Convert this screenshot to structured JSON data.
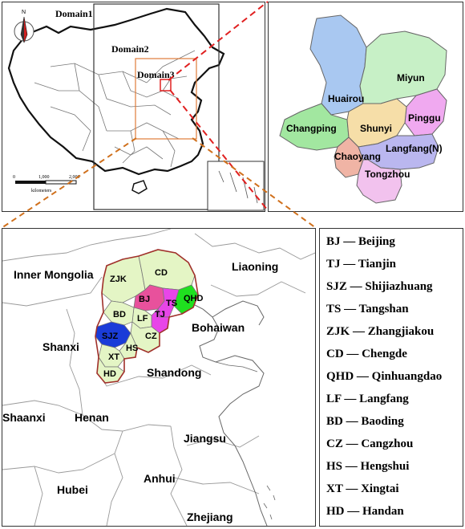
{
  "china_map": {
    "north_arrow": "N",
    "domains": [
      "Domain1",
      "Domain2",
      "Domain3"
    ],
    "scale_ticks": [
      "0",
      "1,000",
      "2,000"
    ],
    "scale_unit": "kilometers"
  },
  "beijing_map": {
    "districts": [
      {
        "name": "Huairou",
        "color": "#a9c8f1"
      },
      {
        "name": "Miyun",
        "color": "#c7f0c6"
      },
      {
        "name": "Pinggu",
        "color": "#f0a9f0"
      },
      {
        "name": "Changping",
        "color": "#a2e7a0"
      },
      {
        "name": "Shunyi",
        "color": "#f6dea8"
      },
      {
        "name": "Chaoyang",
        "color": "#f0b4a5"
      },
      {
        "name": "Langfang(N)",
        "color": "#bab7ef"
      },
      {
        "name": "Tongzhou",
        "color": "#f2c2ee"
      }
    ]
  },
  "region_map": {
    "provinces": [
      "Inner Mongolia",
      "Liaoning",
      "Shanxi",
      "Bohaiwan",
      "Shandong",
      "Shaanxi",
      "Henan",
      "Jiangsu",
      "Hubei",
      "Anhui",
      "Zhejiang"
    ],
    "cities": [
      {
        "code": "CD",
        "color": "#e4f5c5"
      },
      {
        "code": "ZJK",
        "color": "#e4f5c5"
      },
      {
        "code": "BJ",
        "color": "#e8519c"
      },
      {
        "code": "TS",
        "color": "#e845e8"
      },
      {
        "code": "QHD",
        "color": "#1fe01f"
      },
      {
        "code": "TJ",
        "color": "#e845e8"
      },
      {
        "code": "LF",
        "color": "#e4f5c5"
      },
      {
        "code": "BD",
        "color": "#e4f5c5"
      },
      {
        "code": "SJZ",
        "color": "#1a3cd8"
      },
      {
        "code": "CZ",
        "color": "#e4f5c5"
      },
      {
        "code": "HS",
        "color": "#e4f5c5"
      },
      {
        "code": "XT",
        "color": "#e4f5c5"
      },
      {
        "code": "HD",
        "color": "#e4f5c5"
      }
    ]
  },
  "legend": [
    {
      "code": "BJ",
      "name": "Beijing"
    },
    {
      "code": "TJ",
      "name": "Tianjin"
    },
    {
      "code": "SJZ",
      "name": "Shijiazhuang"
    },
    {
      "code": "TS",
      "name": "Tangshan"
    },
    {
      "code": "ZJK",
      "name": "Zhangjiakou"
    },
    {
      "code": "CD",
      "name": "Chengde"
    },
    {
      "code": "QHD",
      "name": "Qinhuangdao"
    },
    {
      "code": "LF",
      "name": "Langfang"
    },
    {
      "code": "BD",
      "name": "Baoding"
    },
    {
      "code": "CZ",
      "name": "Cangzhou"
    },
    {
      "code": "HS",
      "name": "Hengshui"
    },
    {
      "code": "XT",
      "name": "Xingtai"
    },
    {
      "code": "HD",
      "name": "Handan"
    }
  ],
  "legend_separator": "—",
  "colors": {
    "domain_box_dark": "#333333",
    "domain3_box": "#e07b39",
    "zoom_line_red": "#e02020",
    "zoom_line_orange": "#d0701c",
    "hebei_border": "#a0302a"
  }
}
